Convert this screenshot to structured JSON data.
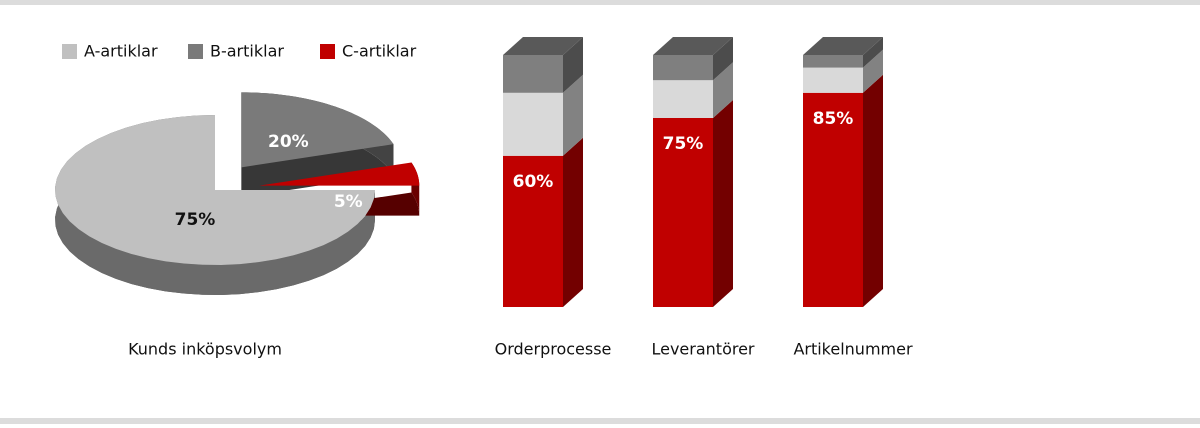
{
  "chart_data": [
    {
      "type": "pie",
      "title": "Kunds inköpsvolym",
      "categories": [
        "A-artiklar",
        "B-artiklar",
        "C-artiklar"
      ],
      "values": [
        75,
        20,
        5
      ],
      "value_labels": [
        "75%",
        "20%",
        "5%"
      ],
      "colors": [
        "#c0c0c0",
        "#7a7a7a",
        "#c00000"
      ]
    },
    {
      "type": "stacked-bar-3d",
      "categories": [
        "Orderprocesse",
        "Leverantörer",
        "Artikelnummer"
      ],
      "series": [
        {
          "color": "#c00000",
          "values": [
            60,
            75,
            85
          ],
          "value_labels": [
            "60%",
            "75%",
            "85%"
          ]
        },
        {
          "color": "#d9d9d9",
          "values": [
            25,
            15,
            10
          ]
        },
        {
          "color": "#7f7f7f",
          "values": [
            15,
            10,
            5
          ]
        }
      ]
    }
  ]
}
